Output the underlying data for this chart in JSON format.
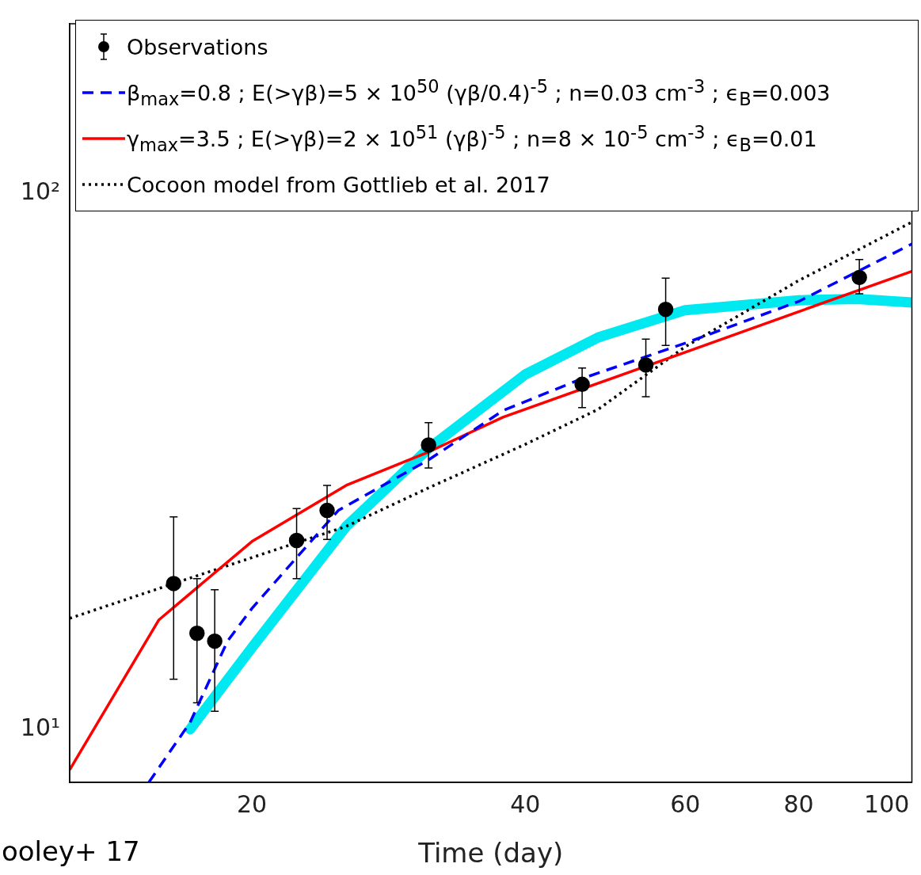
{
  "chart_data": {
    "type": "line",
    "xlabel": "Time (day)",
    "log": "xy",
    "xlim": [
      12.6,
      106.6
    ],
    "ylim": [
      7.96,
      207
    ],
    "xticks": [
      20,
      40,
      60,
      80,
      100
    ],
    "yticks": [
      {
        "value": 10,
        "label": "10¹"
      },
      {
        "value": 100,
        "label": "10²"
      }
    ],
    "grid": false,
    "legend": "top",
    "annotations": [
      "ooley+ 17"
    ],
    "series": [
      {
        "name": "Observations",
        "type": "scatter",
        "marker": "circle",
        "color": "#000000",
        "x": [
          16.4,
          17.4,
          18.2,
          22.4,
          24.2,
          31.3,
          46.2,
          54.3,
          57.1,
          93.3
        ],
        "values": [
          18.7,
          15.1,
          14.6,
          22.5,
          25.6,
          33.9,
          44.0,
          47.8,
          60.7,
          69.6
        ],
        "errors": [
          [
            12.4,
            24.9
          ],
          [
            11.2,
            19.1
          ],
          [
            10.8,
            18.2
          ],
          [
            19.1,
            25.8
          ],
          [
            22.6,
            28.5
          ],
          [
            30.7,
            37.3
          ],
          [
            39.8,
            47.2
          ],
          [
            41.7,
            53.4
          ],
          [
            52.0,
            69.4
          ],
          [
            64.9,
            75.2
          ]
        ]
      },
      {
        "name": "β$_{max}$=0.8 ; E(>γβ)=5 × 10$^{50}$ (γβ/0.4)$^{-5}$ ;  n=0.03 cm$^{-3}$ ; ϵ$_{B}$=0.003",
        "line_style": "dashed",
        "marker": "none",
        "color": "#0000ff",
        "x": [
          15.4,
          17.1,
          18.8,
          20,
          22.4,
          24.9,
          31.3,
          37.8,
          46.2,
          60,
          80,
          106.6
        ],
        "values": [
          7.96,
          10.3,
          14.6,
          16.8,
          20.9,
          25.6,
          31.8,
          39.3,
          45.1,
          52.5,
          62.8,
          80.4
        ]
      },
      {
        "name": "γ$_{max}$=3.5 ; E(>γβ)=2 × 10$^{51}$ (γβ)$^{-5}$ ;  n=8 × 10$^{-5}$ cm$^{-3}$ ; ϵ$_{B}$=0.01",
        "line_style": "solid",
        "marker": "none",
        "color": "#ff0000",
        "x": [
          12.6,
          15.8,
          20,
          25.4,
          31.3,
          37.8,
          60,
          80,
          106.6
        ],
        "values": [
          8.4,
          16.0,
          22.4,
          28.5,
          32.9,
          38.2,
          50.5,
          60.1,
          71.5
        ]
      },
      {
        "name": "Cocoon model from Gottlieb et al. 2017",
        "line_style": "dotted",
        "marker": "none",
        "color": "#000000",
        "x": [
          12.6,
          16.4,
          20,
          25.4,
          31.3,
          40,
          48.1,
          60,
          80,
          106.6
        ],
        "values": [
          16.1,
          18.7,
          20.9,
          23.9,
          28.2,
          34.0,
          39.5,
          51.7,
          68.7,
          88.3
        ]
      },
      {
        "line_style": "solid",
        "marker": "none",
        "color": "#00e8f0",
        "x": [
          17.1,
          20,
          25.4,
          31.3,
          40,
          48.1,
          60,
          80,
          92.7,
          106.6
        ],
        "values": [
          10.0,
          14.2,
          23.9,
          33.4,
          45.9,
          53.8,
          60.5,
          63.1,
          63.5,
          62.5
        ]
      }
    ]
  }
}
